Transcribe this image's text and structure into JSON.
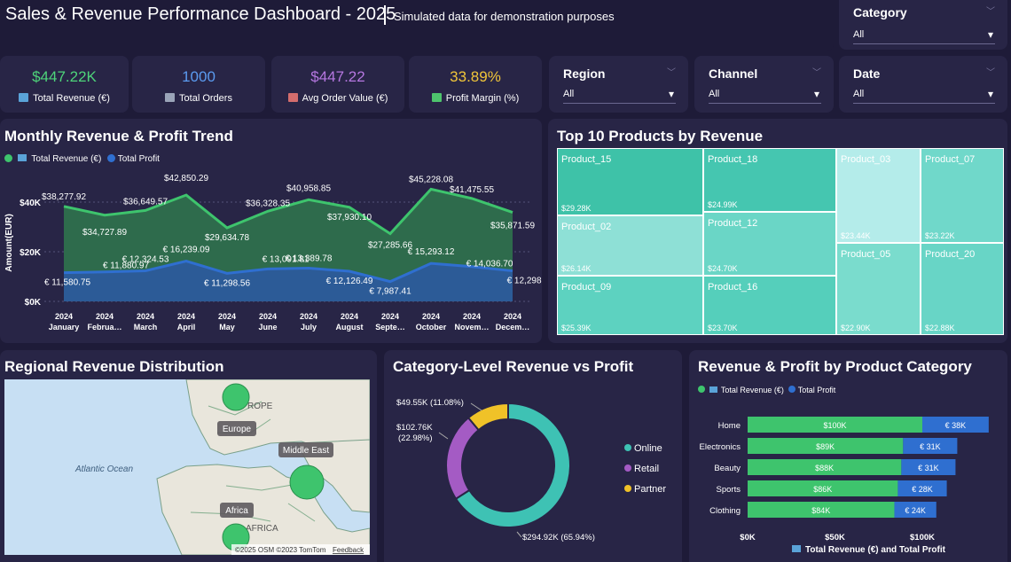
{
  "header": {
    "title": "Sales & Revenue Performance Dashboard - 2025",
    "subtitle": "Simulated data for demonstration purposes"
  },
  "kpis": [
    {
      "value": "$447.22K",
      "label": "Total Revenue (€)",
      "color": "#4ed47a",
      "icon": "money-icon"
    },
    {
      "value": "1000",
      "label": "Total Orders",
      "color": "#5b9bf0",
      "icon": "cart-icon"
    },
    {
      "value": "$447.22",
      "label": "Avg Order Value (€)",
      "color": "#b577e0",
      "icon": "bar-chart-icon"
    },
    {
      "value": "33.89%",
      "label": "Profit Margin (%)",
      "color": "#f0c53a",
      "icon": "check-chart-icon"
    }
  ],
  "slicers": {
    "category": {
      "title": "Category",
      "selected": "All"
    },
    "region": {
      "title": "Region",
      "selected": "All"
    },
    "channel": {
      "title": "Channel",
      "selected": "All"
    },
    "date": {
      "title": "Date",
      "selected": "All"
    }
  },
  "trend": {
    "title": "Monthly Revenue & Profit Trend",
    "legend_revenue": "Total Revenue (€)",
    "legend_profit": "Total Profit",
    "y_axis_label": "Amount(EUR)",
    "y_ticks": [
      "$40K",
      "$20K",
      "$0K"
    ],
    "year": "2024",
    "months": [
      "January",
      "Februa…",
      "March",
      "April",
      "May",
      "June",
      "July",
      "August",
      "Septe…",
      "October",
      "Novem…",
      "Decem…"
    ],
    "revenue_labels": [
      "$38,277.92",
      "$34,727.89",
      "$36,649.57",
      "$42,850.29",
      "$29,634.78",
      "$36,328.35",
      "$40,958.85",
      "$37,930.10",
      "$27,285.66",
      "$45,228.08",
      "$41,475.55",
      "$35,871.59"
    ],
    "profit_labels": [
      "€ 11,580.75",
      "€ 11,880.97",
      "€ 12,324.53",
      "€ 16,239.09",
      "€ 11,298.56",
      "€ 13,091.81",
      "€ 13,389.78",
      "€ 12,126.49",
      "€ 7,987.41",
      "€ 15,293.12",
      "€ 14,036.70",
      "€ 12,298.02"
    ],
    "colors": {
      "revenue": "#3ec46d",
      "profit": "#2f6fd0"
    }
  },
  "chart_data": [
    {
      "type": "area",
      "title": "Monthly Revenue & Profit Trend",
      "ylabel": "Amount(EUR)",
      "ylim": [
        0,
        50000
      ],
      "categories": [
        "2024 January",
        "2024 February",
        "2024 March",
        "2024 April",
        "2024 May",
        "2024 June",
        "2024 July",
        "2024 August",
        "2024 September",
        "2024 October",
        "2024 November",
        "2024 December"
      ],
      "series": [
        {
          "name": "Total Revenue (€)",
          "values": [
            38277.92,
            34727.89,
            36649.57,
            42850.29,
            29634.78,
            36328.35,
            40958.85,
            37930.1,
            27285.66,
            45228.08,
            41475.55,
            35871.59
          ]
        },
        {
          "name": "Total Profit",
          "values": [
            11580.75,
            11880.97,
            12324.53,
            16239.09,
            11298.56,
            13091.81,
            13389.78,
            12126.49,
            7987.41,
            15293.12,
            14036.7,
            12298.02
          ]
        }
      ]
    },
    {
      "type": "pie",
      "title": "Category-Level Revenue vs Profit",
      "categories": [
        "Online",
        "Retail",
        "Partner"
      ],
      "values": [
        294.92,
        102.76,
        49.55
      ]
    },
    {
      "type": "bar",
      "title": "Revenue & Profit by Product Category",
      "categories": [
        "Home",
        "Electronics",
        "Beauty",
        "Sports",
        "Clothing"
      ],
      "xlim": [
        0,
        100
      ],
      "series": [
        {
          "name": "Total Revenue (€)",
          "values": [
            100,
            89,
            88,
            86,
            84
          ]
        },
        {
          "name": "Total Profit",
          "values": [
            38,
            31,
            31,
            28,
            24
          ]
        }
      ]
    }
  ],
  "treemap": {
    "title": "Top 10 Products by Revenue",
    "cells": [
      {
        "name": "Product_15",
        "value": "$29.28K",
        "color": "#3ec2a8"
      },
      {
        "name": "Product_02",
        "value": "$26.14K",
        "color": "#8ee0d6"
      },
      {
        "name": "Product_09",
        "value": "$25.39K",
        "color": "#5dd2c0"
      },
      {
        "name": "Product_18",
        "value": "$24.99K",
        "color": "#45c6b0"
      },
      {
        "name": "Product_12",
        "value": "$24.70K",
        "color": "#6ad6c6"
      },
      {
        "name": "Product_16",
        "value": "$23.70K",
        "color": "#55cfbb"
      },
      {
        "name": "Product_03",
        "value": "$23.44K",
        "color": "#b4ecea"
      },
      {
        "name": "Product_05",
        "value": "$22.90K",
        "color": "#7adccd"
      },
      {
        "name": "Product_07",
        "value": "$23.22K",
        "color": "#70d8ca"
      },
      {
        "name": "Product_20",
        "value": "$22.88K",
        "color": "#68d5c6"
      }
    ]
  },
  "map": {
    "title": "Regional Revenue Distribution",
    "labels": {
      "europe": "Europe",
      "middle_east": "Middle East",
      "africa": "Africa",
      "ocean": "Atlantic Ocean",
      "europe_text": "ROPE",
      "africa_text": "AFRICA"
    },
    "attribution": "©2025 OSM  ©2023 TomTom",
    "feedback": "Feedback"
  },
  "donut": {
    "title": "Category-Level Revenue vs Profit",
    "label_online": "$294.92K (65.94%)",
    "label_retail_1": "$102.76K",
    "label_retail_2": "(22.98%)",
    "label_partner": "$49.55K (11.08%)",
    "legend": [
      "Online",
      "Retail",
      "Partner"
    ],
    "colors": [
      "#3ec2b4",
      "#a45bc4",
      "#f0c228"
    ]
  },
  "hbar": {
    "title": "Revenue & Profit by Product Category",
    "legend_revenue": "Total Revenue (€)",
    "legend_profit": "Total Profit",
    "categories": [
      "Home",
      "Electronics",
      "Beauty",
      "Sports",
      "Clothing"
    ],
    "revenue_labels": [
      "$100K",
      "$89K",
      "$88K",
      "$86K",
      "$84K"
    ],
    "profit_labels": [
      "€ 38K",
      "€ 31K",
      "€ 31K",
      "€ 28K",
      "€ 24K"
    ],
    "x_ticks": [
      "$0K",
      "$50K",
      "$100K"
    ],
    "x_axis_label": "Total Revenue (€) and Total Profit",
    "colors": {
      "revenue": "#3ec46d",
      "profit": "#2f6fd0"
    }
  }
}
